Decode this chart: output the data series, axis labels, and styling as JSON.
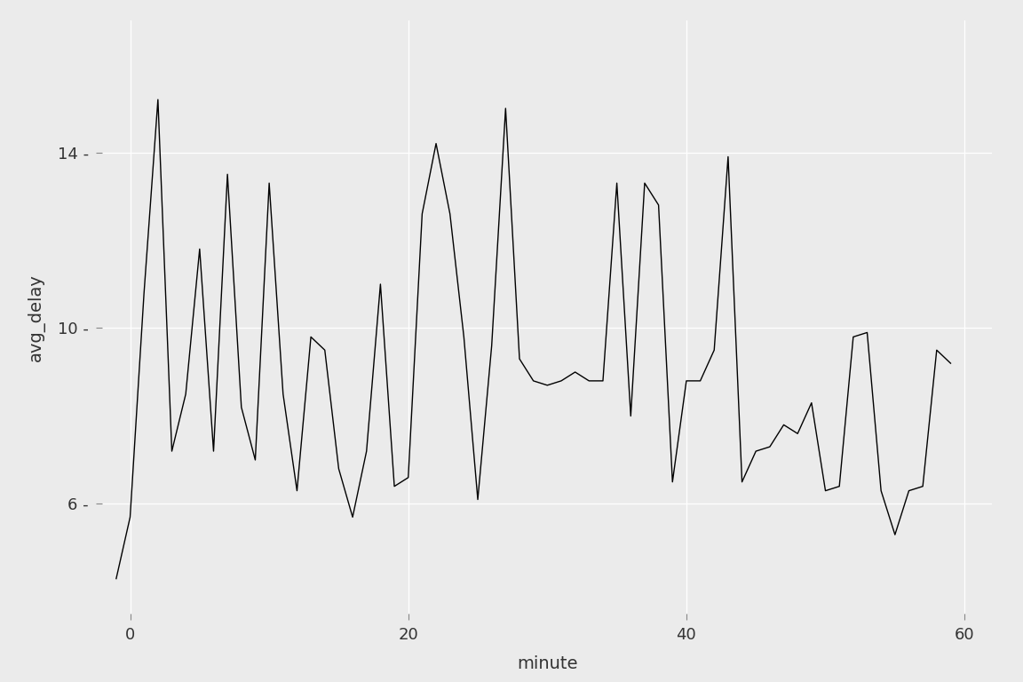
{
  "x": [
    -1,
    0,
    1,
    2,
    3,
    4,
    5,
    6,
    7,
    8,
    9,
    10,
    11,
    12,
    13,
    14,
    15,
    16,
    17,
    18,
    19,
    20,
    21,
    22,
    23,
    24,
    25,
    26,
    27,
    28,
    29,
    30,
    31,
    32,
    33,
    34,
    35,
    36,
    37,
    38,
    39,
    40,
    41,
    42,
    43,
    44,
    45,
    46,
    47,
    48,
    49,
    50,
    51,
    52,
    53,
    54,
    55,
    56,
    57,
    58,
    59
  ],
  "y": [
    4.3,
    5.7,
    10.8,
    15.2,
    7.2,
    8.5,
    11.8,
    7.2,
    13.5,
    8.2,
    7.0,
    13.3,
    8.5,
    6.3,
    9.8,
    9.5,
    6.8,
    5.7,
    7.2,
    11.0,
    6.4,
    6.6,
    12.6,
    14.2,
    12.6,
    9.8,
    6.1,
    9.6,
    15.0,
    9.3,
    8.8,
    8.7,
    8.8,
    9.0,
    8.8,
    8.8,
    13.3,
    8.0,
    13.3,
    12.8,
    6.5,
    8.8,
    8.8,
    9.5,
    13.9,
    6.5,
    7.2,
    7.3,
    7.8,
    7.6,
    8.3,
    6.3,
    6.4,
    9.8,
    9.9,
    6.3,
    5.3,
    6.3,
    6.4,
    9.5,
    9.2
  ],
  "xlabel": "minute",
  "ylabel": "avg_delay",
  "xlim": [
    -2,
    62
  ],
  "ylim": [
    3.5,
    17.0
  ],
  "xticks": [
    0,
    20,
    40,
    60
  ],
  "yticks": [
    6,
    10,
    14
  ],
  "line_color": "#000000",
  "line_width": 1.0,
  "background_color": "#EBEBEB",
  "grid_color": "#FFFFFF",
  "axis_label_fontsize": 14,
  "tick_label_fontsize": 13
}
